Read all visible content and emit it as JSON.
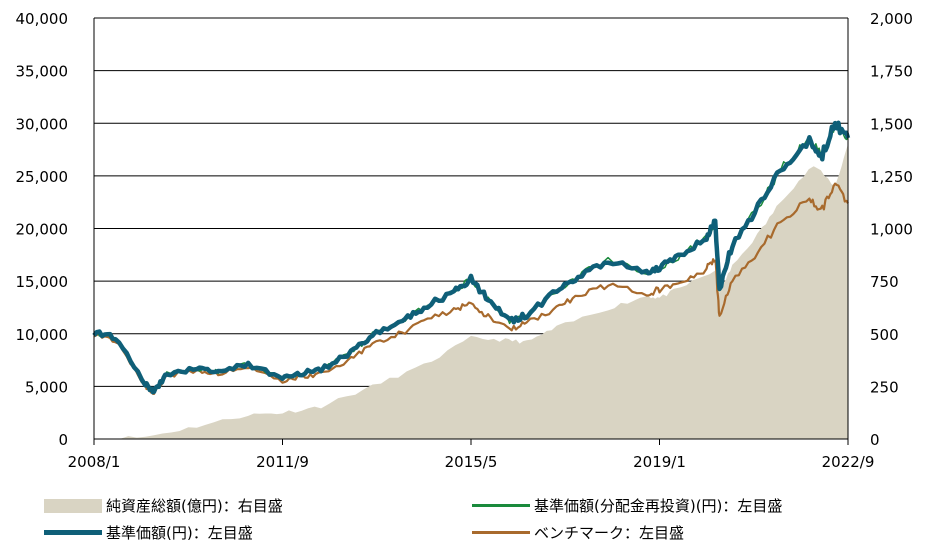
{
  "chart_data": {
    "type": "line",
    "x_ticks": [
      "2008/1",
      "2011/9",
      "2015/5",
      "2019/1",
      "2022/9"
    ],
    "y_left_ticks": [
      "0",
      "5,000",
      "10,000",
      "15,000",
      "20,000",
      "25,000",
      "30,000",
      "35,000",
      "40,000"
    ],
    "y_right_ticks": [
      "0",
      "250",
      "500",
      "750",
      "1,000",
      "1,250",
      "1,500",
      "1,750",
      "2,000"
    ],
    "y_left_range": [
      0,
      40000
    ],
    "y_right_range": [
      0,
      2000
    ],
    "x_range": [
      "2008/1",
      "2022/9"
    ],
    "grid": "horizontal",
    "legend_position": "bottom",
    "series": [
      {
        "name": "純資産総額(億円)：右目盛",
        "type": "area",
        "axis": "right",
        "color": "#d9d4c3",
        "x": [
          "2008/1",
          "2009/1",
          "2010/1",
          "2011/1",
          "2011/9",
          "2012/6",
          "2013/6",
          "2014/6",
          "2015/5",
          "2016/1",
          "2016/6",
          "2017/1",
          "2018/1",
          "2018/10",
          "2019/1",
          "2019/6",
          "2020/2",
          "2020/3",
          "2020/6",
          "2021/1",
          "2021/6",
          "2022/1",
          "2022/6",
          "2022/9"
        ],
        "values": [
          0,
          10,
          60,
          115,
          125,
          155,
          250,
          350,
          480,
          470,
          460,
          530,
          620,
          680,
          670,
          720,
          800,
          700,
          820,
          1000,
          1150,
          1300,
          1200,
          1400
        ]
      },
      {
        "name": "基準価額(分配金再投資)(円)：左目盛",
        "type": "line",
        "axis": "left",
        "color": "#1a8a3c",
        "x": [
          "2008/1",
          "2008/6",
          "2009/1",
          "2009/3",
          "2009/6",
          "2010/1",
          "2010/6",
          "2011/1",
          "2011/9",
          "2012/1",
          "2012/6",
          "2013/1",
          "2013/6",
          "2014/1",
          "2014/6",
          "2015/1",
          "2015/5",
          "2015/9",
          "2016/2",
          "2016/6",
          "2017/1",
          "2017/6",
          "2018/1",
          "2018/10",
          "2019/1",
          "2019/6",
          "2019/12",
          "2020/2",
          "2020/3",
          "2020/6",
          "2020/12",
          "2021/6",
          "2021/12",
          "2022/3",
          "2022/6",
          "2022/9"
        ],
        "values": [
          10100,
          9600,
          5200,
          4500,
          6200,
          6700,
          6400,
          7100,
          5800,
          6200,
          6600,
          8200,
          9900,
          11200,
          12500,
          14000,
          15200,
          13200,
          11200,
          11800,
          14000,
          15500,
          17000,
          15800,
          16200,
          17500,
          19200,
          20600,
          14200,
          18500,
          22000,
          26000,
          28500,
          27000,
          30000,
          28600
        ]
      },
      {
        "name": "基準価額(円)：左目盛",
        "type": "line",
        "axis": "left",
        "color": "#0f5f78",
        "x": [
          "2008/1",
          "2008/6",
          "2009/1",
          "2009/3",
          "2009/6",
          "2010/1",
          "2010/6",
          "2011/1",
          "2011/9",
          "2012/1",
          "2012/6",
          "2013/1",
          "2013/6",
          "2014/1",
          "2014/6",
          "2015/1",
          "2015/5",
          "2015/9",
          "2016/2",
          "2016/6",
          "2017/1",
          "2017/6",
          "2018/1",
          "2018/10",
          "2019/1",
          "2019/6",
          "2019/12",
          "2020/2",
          "2020/3",
          "2020/6",
          "2020/12",
          "2021/6",
          "2021/12",
          "2022/3",
          "2022/6",
          "2022/9"
        ],
        "values": [
          10100,
          9600,
          5200,
          4500,
          6200,
          6700,
          6400,
          7100,
          5800,
          6200,
          6600,
          8200,
          9900,
          11200,
          12500,
          14000,
          15200,
          13200,
          11200,
          11800,
          14000,
          15500,
          17000,
          15800,
          16200,
          17500,
          19200,
          20600,
          14200,
          18500,
          22000,
          26000,
          28500,
          27000,
          30000,
          28600
        ]
      },
      {
        "name": "ベンチマーク：左目盛",
        "type": "line",
        "axis": "left",
        "color": "#a86a2d",
        "x": [
          "2008/1",
          "2008/6",
          "2009/1",
          "2009/3",
          "2009/6",
          "2010/1",
          "2010/6",
          "2011/1",
          "2011/9",
          "2012/1",
          "2012/6",
          "2013/1",
          "2013/6",
          "2014/1",
          "2014/6",
          "2015/1",
          "2015/5",
          "2015/9",
          "2016/2",
          "2016/6",
          "2017/1",
          "2017/6",
          "2018/1",
          "2018/10",
          "2019/1",
          "2019/6",
          "2019/12",
          "2020/2",
          "2020/3",
          "2020/6",
          "2020/12",
          "2021/6",
          "2021/12",
          "2022/3",
          "2022/6",
          "2022/9"
        ],
        "values": [
          10000,
          9400,
          5000,
          4300,
          6000,
          6500,
          6200,
          6900,
          5500,
          5900,
          6200,
          7600,
          9000,
          10100,
          11200,
          12300,
          13000,
          11600,
          10400,
          11000,
          12500,
          13500,
          14600,
          13800,
          14200,
          14900,
          16200,
          17200,
          11500,
          15200,
          17800,
          21000,
          22800,
          21800,
          24200,
          22400
        ]
      }
    ]
  }
}
